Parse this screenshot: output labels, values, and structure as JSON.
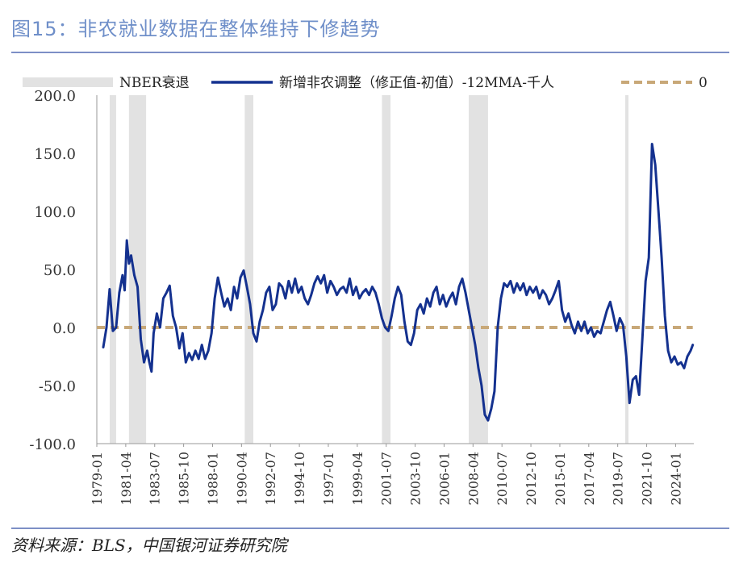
{
  "title": "图15：非农就业数据在整体维持下修趋势",
  "source": "资料来源：BLS，中国银河证券研究院",
  "colors": {
    "series": "#14318f",
    "zero": "#c8a878",
    "recession": "#e2e2e2",
    "rule": "#7d8fc6",
    "title": "#6f8fc9"
  },
  "chart_data": {
    "type": "line",
    "title": "",
    "xlabel": "",
    "ylabel": "",
    "ylim": [
      -100,
      200
    ],
    "yticks": [
      "200.0",
      "150.0",
      "100.0",
      "50.0",
      "0.0",
      "-50.0",
      "-100.0"
    ],
    "xticks": [
      "1979-01",
      "1981-04",
      "1983-07",
      "1985-10",
      "1988-01",
      "1990-04",
      "1992-07",
      "1994-10",
      "1997-01",
      "1999-04",
      "2001-07",
      "2003-10",
      "2006-01",
      "2008-04",
      "2010-07",
      "2012-10",
      "2015-01",
      "2017-04",
      "2019-07",
      "2021-10",
      "2024-01"
    ],
    "grid": false,
    "legend_placement": "top",
    "legend": {
      "recession": "NBER衰退",
      "series": "新增非农调整（修正值-初值）-12MMA-千人",
      "zero": "0"
    },
    "recessions": [
      [
        "1980-01",
        "1980-07"
      ],
      [
        "1981-07",
        "1982-11"
      ],
      [
        "1990-07",
        "1991-03"
      ],
      [
        "2001-03",
        "2001-11"
      ],
      [
        "2007-12",
        "2009-06"
      ],
      [
        "2020-02",
        "2020-04"
      ]
    ],
    "series": [
      {
        "name": "新增非农调整（修正值-初值）-12MMA-千人",
        "points": [
          [
            "1979-07",
            -17
          ],
          [
            "1979-10",
            0
          ],
          [
            "1980-01",
            33
          ],
          [
            "1980-04",
            -3
          ],
          [
            "1980-07",
            0
          ],
          [
            "1980-10",
            30
          ],
          [
            "1981-01",
            45
          ],
          [
            "1981-03",
            32
          ],
          [
            "1981-05",
            75
          ],
          [
            "1981-07",
            55
          ],
          [
            "1981-09",
            62
          ],
          [
            "1981-12",
            45
          ],
          [
            "1982-03",
            35
          ],
          [
            "1982-06",
            -10
          ],
          [
            "1982-09",
            -30
          ],
          [
            "1982-12",
            -20
          ],
          [
            "1983-02",
            -30
          ],
          [
            "1983-04",
            -38
          ],
          [
            "1983-06",
            -5
          ],
          [
            "1983-09",
            12
          ],
          [
            "1983-12",
            0
          ],
          [
            "1984-03",
            25
          ],
          [
            "1984-06",
            30
          ],
          [
            "1984-09",
            36
          ],
          [
            "1984-12",
            10
          ],
          [
            "1985-03",
            0
          ],
          [
            "1985-06",
            -18
          ],
          [
            "1985-09",
            -5
          ],
          [
            "1985-12",
            -30
          ],
          [
            "1986-03",
            -22
          ],
          [
            "1986-06",
            -28
          ],
          [
            "1986-09",
            -20
          ],
          [
            "1986-12",
            -27
          ],
          [
            "1987-03",
            -15
          ],
          [
            "1987-06",
            -27
          ],
          [
            "1987-09",
            -20
          ],
          [
            "1987-12",
            -5
          ],
          [
            "1988-03",
            25
          ],
          [
            "1988-06",
            43
          ],
          [
            "1988-09",
            30
          ],
          [
            "1988-12",
            18
          ],
          [
            "1989-03",
            25
          ],
          [
            "1989-06",
            15
          ],
          [
            "1989-09",
            35
          ],
          [
            "1989-12",
            25
          ],
          [
            "1990-03",
            43
          ],
          [
            "1990-06",
            49
          ],
          [
            "1990-09",
            35
          ],
          [
            "1990-12",
            20
          ],
          [
            "1991-03",
            -5
          ],
          [
            "1991-06",
            -12
          ],
          [
            "1991-09",
            5
          ],
          [
            "1991-12",
            15
          ],
          [
            "1992-03",
            30
          ],
          [
            "1992-06",
            35
          ],
          [
            "1992-09",
            15
          ],
          [
            "1992-12",
            20
          ],
          [
            "1993-03",
            38
          ],
          [
            "1993-06",
            35
          ],
          [
            "1993-09",
            25
          ],
          [
            "1993-12",
            40
          ],
          [
            "1994-03",
            30
          ],
          [
            "1994-06",
            42
          ],
          [
            "1994-09",
            30
          ],
          [
            "1994-12",
            35
          ],
          [
            "1995-03",
            25
          ],
          [
            "1995-06",
            20
          ],
          [
            "1995-09",
            28
          ],
          [
            "1995-12",
            38
          ],
          [
            "1996-03",
            44
          ],
          [
            "1996-06",
            38
          ],
          [
            "1996-09",
            45
          ],
          [
            "1996-12",
            30
          ],
          [
            "1997-03",
            40
          ],
          [
            "1997-06",
            35
          ],
          [
            "1997-09",
            28
          ],
          [
            "1997-12",
            33
          ],
          [
            "1998-03",
            35
          ],
          [
            "1998-06",
            30
          ],
          [
            "1998-09",
            42
          ],
          [
            "1998-12",
            28
          ],
          [
            "1999-03",
            35
          ],
          [
            "1999-06",
            25
          ],
          [
            "1999-09",
            30
          ],
          [
            "1999-12",
            33
          ],
          [
            "2000-03",
            28
          ],
          [
            "2000-06",
            35
          ],
          [
            "2000-09",
            30
          ],
          [
            "2000-12",
            20
          ],
          [
            "2001-03",
            8
          ],
          [
            "2001-06",
            0
          ],
          [
            "2001-09",
            -3
          ],
          [
            "2001-12",
            10
          ],
          [
            "2002-03",
            25
          ],
          [
            "2002-06",
            35
          ],
          [
            "2002-09",
            28
          ],
          [
            "2002-12",
            5
          ],
          [
            "2003-03",
            -12
          ],
          [
            "2003-06",
            -15
          ],
          [
            "2003-09",
            -5
          ],
          [
            "2003-12",
            15
          ],
          [
            "2004-03",
            20
          ],
          [
            "2004-06",
            12
          ],
          [
            "2004-09",
            25
          ],
          [
            "2004-12",
            18
          ],
          [
            "2005-03",
            30
          ],
          [
            "2005-06",
            35
          ],
          [
            "2005-09",
            20
          ],
          [
            "2005-12",
            28
          ],
          [
            "2006-03",
            18
          ],
          [
            "2006-06",
            25
          ],
          [
            "2006-09",
            30
          ],
          [
            "2006-12",
            20
          ],
          [
            "2007-03",
            35
          ],
          [
            "2007-06",
            42
          ],
          [
            "2007-09",
            30
          ],
          [
            "2007-12",
            15
          ],
          [
            "2008-03",
            0
          ],
          [
            "2008-06",
            -15
          ],
          [
            "2008-09",
            -35
          ],
          [
            "2008-12",
            -50
          ],
          [
            "2009-03",
            -75
          ],
          [
            "2009-06",
            -80
          ],
          [
            "2009-09",
            -70
          ],
          [
            "2009-12",
            -55
          ],
          [
            "2010-03",
            0
          ],
          [
            "2010-06",
            25
          ],
          [
            "2010-09",
            38
          ],
          [
            "2010-12",
            35
          ],
          [
            "2011-03",
            40
          ],
          [
            "2011-06",
            30
          ],
          [
            "2011-09",
            38
          ],
          [
            "2011-12",
            32
          ],
          [
            "2012-03",
            38
          ],
          [
            "2012-06",
            28
          ],
          [
            "2012-09",
            35
          ],
          [
            "2012-12",
            30
          ],
          [
            "2013-03",
            35
          ],
          [
            "2013-06",
            25
          ],
          [
            "2013-09",
            32
          ],
          [
            "2013-12",
            28
          ],
          [
            "2014-03",
            20
          ],
          [
            "2014-06",
            25
          ],
          [
            "2014-09",
            32
          ],
          [
            "2014-12",
            40
          ],
          [
            "2015-03",
            15
          ],
          [
            "2015-06",
            5
          ],
          [
            "2015-09",
            12
          ],
          [
            "2015-12",
            2
          ],
          [
            "2016-03",
            -5
          ],
          [
            "2016-06",
            5
          ],
          [
            "2016-09",
            -3
          ],
          [
            "2016-12",
            5
          ],
          [
            "2017-03",
            -5
          ],
          [
            "2017-06",
            0
          ],
          [
            "2017-09",
            -8
          ],
          [
            "2017-12",
            -3
          ],
          [
            "2018-03",
            -5
          ],
          [
            "2018-06",
            5
          ],
          [
            "2018-09",
            15
          ],
          [
            "2018-12",
            22
          ],
          [
            "2019-03",
            10
          ],
          [
            "2019-06",
            -3
          ],
          [
            "2019-09",
            8
          ],
          [
            "2019-12",
            2
          ],
          [
            "2020-03",
            -25
          ],
          [
            "2020-06",
            -65
          ],
          [
            "2020-09",
            -45
          ],
          [
            "2020-12",
            -42
          ],
          [
            "2021-03",
            -58
          ],
          [
            "2021-06",
            -10
          ],
          [
            "2021-09",
            40
          ],
          [
            "2021-12",
            60
          ],
          [
            "2022-03",
            158
          ],
          [
            "2022-06",
            140
          ],
          [
            "2022-09",
            100
          ],
          [
            "2022-12",
            60
          ],
          [
            "2023-03",
            10
          ],
          [
            "2023-06",
            -20
          ],
          [
            "2023-09",
            -30
          ],
          [
            "2023-12",
            -25
          ],
          [
            "2024-03",
            -32
          ],
          [
            "2024-06",
            -30
          ],
          [
            "2024-09",
            -35
          ],
          [
            "2024-12",
            -25
          ],
          [
            "2025-03",
            -20
          ],
          [
            "2025-05",
            -15
          ]
        ]
      },
      {
        "name": "0",
        "points": [
          [
            "1979-01",
            0
          ],
          [
            "2025-05",
            0
          ]
        ]
      }
    ]
  }
}
